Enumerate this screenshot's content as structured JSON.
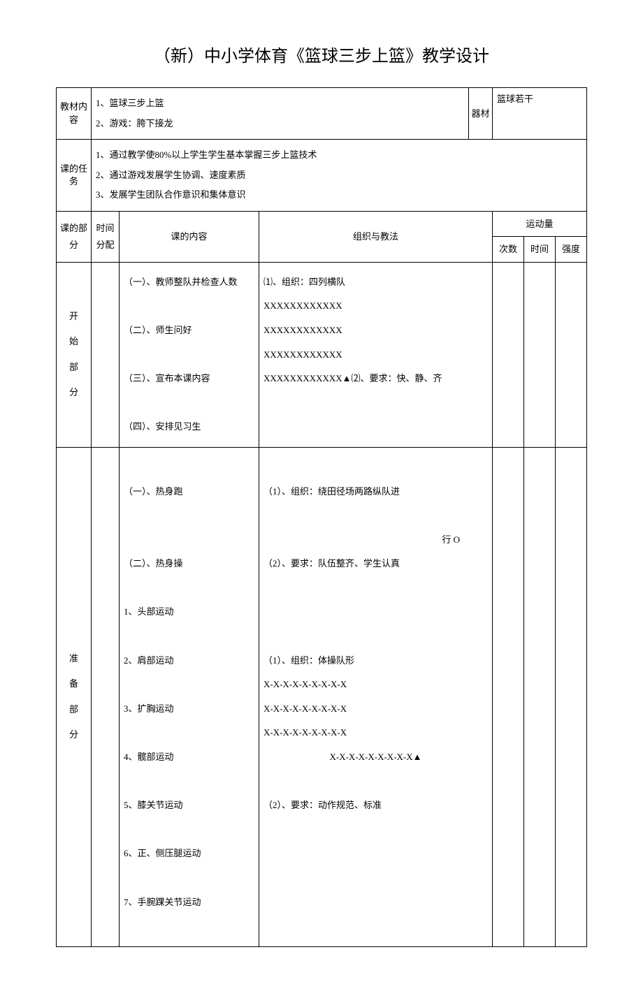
{
  "title": "（新）中小学体育《篮球三步上篮》教学设计",
  "labels": {
    "material": "教材内容",
    "equipment": "器材",
    "task": "课的任务",
    "section": "课的部分",
    "time": "时间分配",
    "content": "课的内容",
    "method": "组织与教法",
    "exercise": "运动量",
    "count": "次数",
    "duration": "时间",
    "intensity": "强度"
  },
  "material": {
    "line1": "1、篮球三步上篮",
    "line2": "2、游戏：胯下接龙"
  },
  "equipment": "篮球若干",
  "tasks": {
    "line1": "1、通过教学使80%以上学生学生基本掌握三步上篮技术",
    "line2": "2、通过游戏发展学生协调、速度素质",
    "line3": "3、发展学生团队合作意识和集体意识"
  },
  "sections": {
    "start": {
      "label1": "开",
      "label2": "始",
      "label3": "部",
      "label4": "分",
      "content": {
        "c1": "（一）、教师整队并检查人数",
        "c2": "（二）、师生问好",
        "c3": "（三）、宣布本课内容",
        "c4": "（四）、安排见习生"
      },
      "method": {
        "m1": "⑴、组织：四列横队",
        "m2": "XXXXXXXXXXXX",
        "m3": "XXXXXXXXXXXX",
        "m4": "XXXXXXXXXXXX",
        "m5": "XXXXXXXXXXXX▲⑵、要求：快、静、齐"
      }
    },
    "prep": {
      "label1": "准",
      "label2": "备",
      "label3": "部",
      "label4": "分",
      "content": {
        "c1": "（一）、热身跑",
        "c2": "（二）、热身操",
        "c3": "1、头部运动",
        "c4": "2、肩部运动",
        "c5": "3、扩胸运动",
        "c6": "4、髋部运动",
        "c7": "5、膝关节运动",
        "c8": "6、正、侧压腿运动",
        "c9": "7、手腕踝关节运动"
      },
      "method": {
        "m1": "（1）、组织：绕田径场两路纵队进",
        "m1b": "行 O",
        "m2": "（2）、要求：队伍整齐、学生认真",
        "m3": "（1）、组织：体操队形",
        "m4": "X-X-X-X-X-X-X-X-X",
        "m5": "X-X-X-X-X-X-X-X-X",
        "m6": "X-X-X-X-X-X-X-X-X",
        "m7": "X-X-X-X-X-X-X-X-X▲",
        "m8": "（2）、要求：动作规范、标准"
      }
    }
  }
}
